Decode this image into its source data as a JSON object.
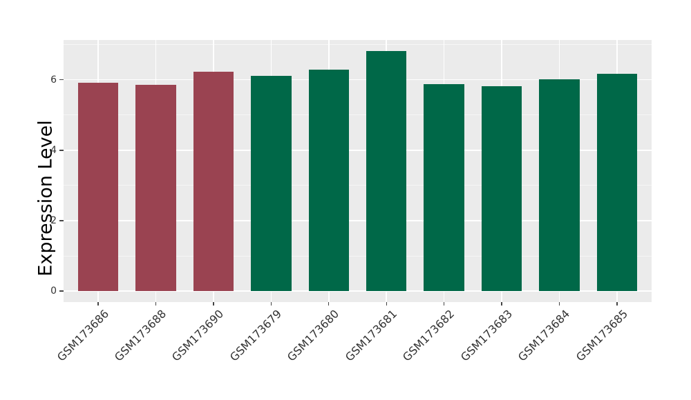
{
  "chart_data": {
    "type": "bar",
    "title": "",
    "xlabel": "",
    "ylabel": "Expression Level",
    "categories": [
      "GSM173686",
      "GSM173688",
      "GSM173690",
      "GSM173679",
      "GSM173680",
      "GSM173681",
      "GSM173682",
      "GSM173683",
      "GSM173684",
      "GSM173685"
    ],
    "values": [
      5.91,
      5.86,
      6.22,
      6.11,
      6.29,
      6.82,
      5.87,
      5.82,
      6.01,
      6.17
    ],
    "bar_colors": [
      "#9A4351",
      "#9A4351",
      "#9A4351",
      "#006848",
      "#006848",
      "#006848",
      "#006848",
      "#006848",
      "#006848",
      "#006848"
    ],
    "group_colors": {
      "group1": "#9A4351",
      "group2": "#006848"
    },
    "yticks": [
      0,
      2,
      4,
      6
    ],
    "yticks_minor": [
      1,
      3,
      5,
      7
    ],
    "ylim": [
      -0.31,
      7.13
    ],
    "bar_width_frac": 0.7,
    "grid": {
      "major": true,
      "minor": true,
      "vertical_at_categories": true
    },
    "legend": "none",
    "panel_bg": "#EBEBEB",
    "grid_color": "#FFFFFF",
    "tick_color": "#333333",
    "x_tick_rotation_deg": 45
  }
}
